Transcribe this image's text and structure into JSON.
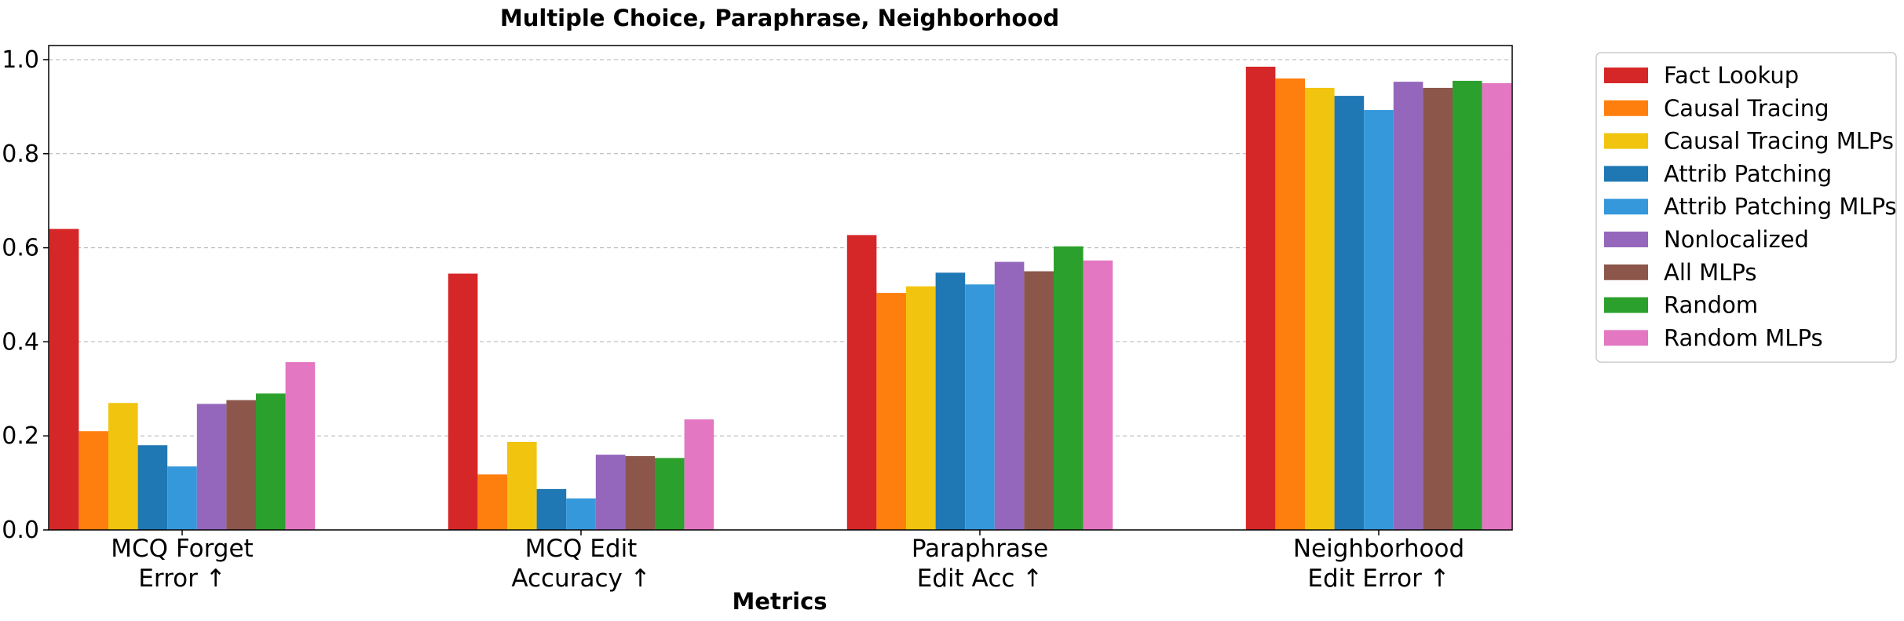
{
  "chart_data": {
    "type": "bar",
    "title": "Multiple Choice, Paraphrase, Neighborhood",
    "xlabel": "Metrics",
    "ylabel": "",
    "ylim": [
      0,
      1.03
    ],
    "yticks": [
      "0.0",
      "0.2",
      "0.4",
      "0.6",
      "0.8",
      "1.0"
    ],
    "grid": true,
    "legend_position": "outside-right",
    "categories": [
      [
        "MCQ Forget",
        "Error ↑"
      ],
      [
        "MCQ Edit",
        "Accuracy ↑"
      ],
      [
        "Paraphrase",
        "Edit Acc ↑"
      ],
      [
        "Neighborhood",
        "Edit Error ↑"
      ]
    ],
    "series": [
      {
        "name": "Fact Lookup",
        "color": "#d62728",
        "values": [
          0.64,
          0.545,
          0.627,
          0.985
        ]
      },
      {
        "name": "Causal Tracing",
        "color": "#ff7f0e",
        "values": [
          0.21,
          0.118,
          0.504,
          0.96
        ]
      },
      {
        "name": "Causal Tracing MLPs",
        "color": "#f1c40f",
        "values": [
          0.27,
          0.187,
          0.518,
          0.94
        ]
      },
      {
        "name": "Attrib Patching",
        "color": "#1f77b4",
        "values": [
          0.18,
          0.087,
          0.547,
          0.923
        ]
      },
      {
        "name": "Attrib Patching MLPs",
        "color": "#3498db",
        "values": [
          0.135,
          0.067,
          0.522,
          0.893
        ]
      },
      {
        "name": "Nonlocalized",
        "color": "#9467bd",
        "values": [
          0.268,
          0.16,
          0.57,
          0.953
        ]
      },
      {
        "name": "All MLPs",
        "color": "#8c564b",
        "values": [
          0.276,
          0.157,
          0.55,
          0.94
        ]
      },
      {
        "name": "Random",
        "color": "#2ca02c",
        "values": [
          0.29,
          0.153,
          0.603,
          0.955
        ]
      },
      {
        "name": "Random MLPs",
        "color": "#e377c2",
        "values": [
          0.357,
          0.235,
          0.573,
          0.95
        ]
      }
    ]
  }
}
